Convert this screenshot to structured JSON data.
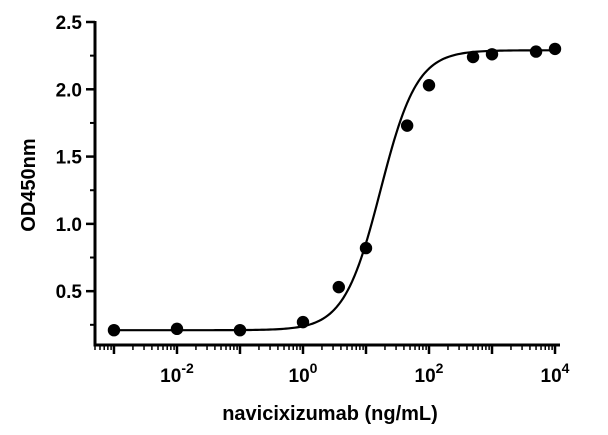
{
  "chart_data": {
    "type": "scatter",
    "xlabel": "navicixizumab (ng/mL)",
    "ylabel": "OD450nm",
    "xscale": "log10",
    "xlim": [
      0.0005,
      12000
    ],
    "ylim": [
      0.1,
      2.5
    ],
    "x_ticks": [
      {
        "value": 0.01,
        "base": "10",
        "exp": "-2"
      },
      {
        "value": 1,
        "base": "10",
        "exp": "0"
      },
      {
        "value": 100,
        "base": "10",
        "exp": "2"
      },
      {
        "value": 10000,
        "base": "10",
        "exp": "4"
      }
    ],
    "y_ticks": [
      {
        "value": 0.5,
        "label": "0.5"
      },
      {
        "value": 1.0,
        "label": "1.0"
      },
      {
        "value": 1.5,
        "label": "1.5"
      },
      {
        "value": 2.0,
        "label": "2.0"
      },
      {
        "value": 2.5,
        "label": "2.5"
      }
    ],
    "grid": false,
    "series": [
      {
        "points": [
          {
            "x": 0.001,
            "y": 0.21
          },
          {
            "x": 0.01,
            "y": 0.22
          },
          {
            "x": 0.1,
            "y": 0.21
          },
          {
            "x": 1,
            "y": 0.27
          },
          {
            "x": 3.7,
            "y": 0.53
          },
          {
            "x": 10,
            "y": 0.82
          },
          {
            "x": 45,
            "y": 1.73
          },
          {
            "x": 100,
            "y": 2.03
          },
          {
            "x": 500,
            "y": 2.24
          },
          {
            "x": 1000,
            "y": 2.26
          },
          {
            "x": 5000,
            "y": 2.28
          },
          {
            "x": 10000,
            "y": 2.3
          }
        ],
        "color": "#000000"
      }
    ],
    "fit_curve": {
      "model": "4PL",
      "bottom": 0.21,
      "top": 2.29,
      "ec50": 17,
      "hill": 1.5
    }
  }
}
